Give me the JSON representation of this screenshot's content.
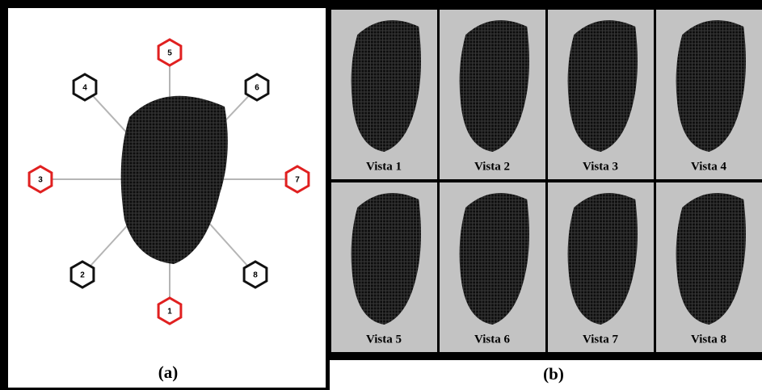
{
  "panel_a": {
    "label": "(a)",
    "views": [
      "1",
      "2",
      "3",
      "4",
      "5",
      "6",
      "7",
      "8"
    ]
  },
  "panel_b": {
    "label": "(b)",
    "views": [
      "Vista 1",
      "Vista 2",
      "Vista 3",
      "Vista 4",
      "Vista 5",
      "Vista 6",
      "Vista 7",
      "Vista 8"
    ]
  }
}
